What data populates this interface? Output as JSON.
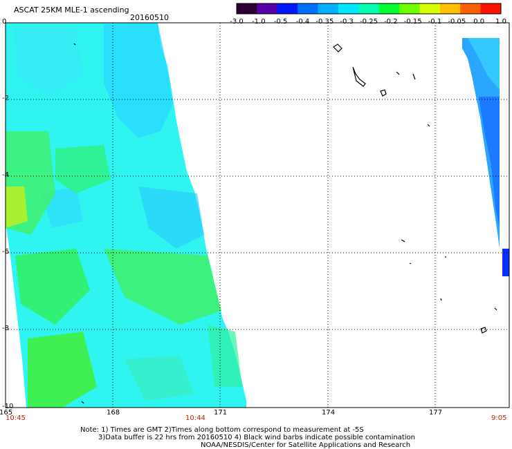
{
  "header": {
    "title": "ASCAT 25KM MLE-1 ascending",
    "date": "20160510"
  },
  "colorbar": {
    "labels": [
      "-3.0",
      "-1.0",
      "-0.5",
      "-0.4",
      "-0.35",
      "-0.3",
      "-0.25",
      "-0.2",
      "-0.15",
      "-0.1",
      "-0.05",
      "0.0",
      "1.0"
    ],
    "colors": [
      "#2a0030",
      "#5a00a8",
      "#0018ff",
      "#0070ff",
      "#00b0ff",
      "#00e8ff",
      "#00ffb0",
      "#00ff30",
      "#70ff00",
      "#d8ff00",
      "#ffc000",
      "#ff6000",
      "#ff1000"
    ]
  },
  "axes": {
    "lat_labels": [
      "0",
      "-2",
      "-4",
      "-6",
      "-8",
      "-10"
    ],
    "lon_labels": [
      "165",
      "168",
      "171",
      "174",
      "177"
    ]
  },
  "times": {
    "left": "10:45",
    "middle": "10:44",
    "right": "9:05"
  },
  "notes": {
    "line1": "Note: 1) Times are GMT 2)Times along bottom correspond to measurement at -5S",
    "line2": "3)Data buffer is 22 hrs from 20160510 4) Black wind barbs indicate possible contamination",
    "line3": "NOAA/NESDIS/Center for Satellite Applications and Research"
  },
  "map": {
    "lat_range": [
      0,
      -10
    ],
    "lon_range": [
      165,
      179
    ],
    "grid_style": "dotted"
  }
}
